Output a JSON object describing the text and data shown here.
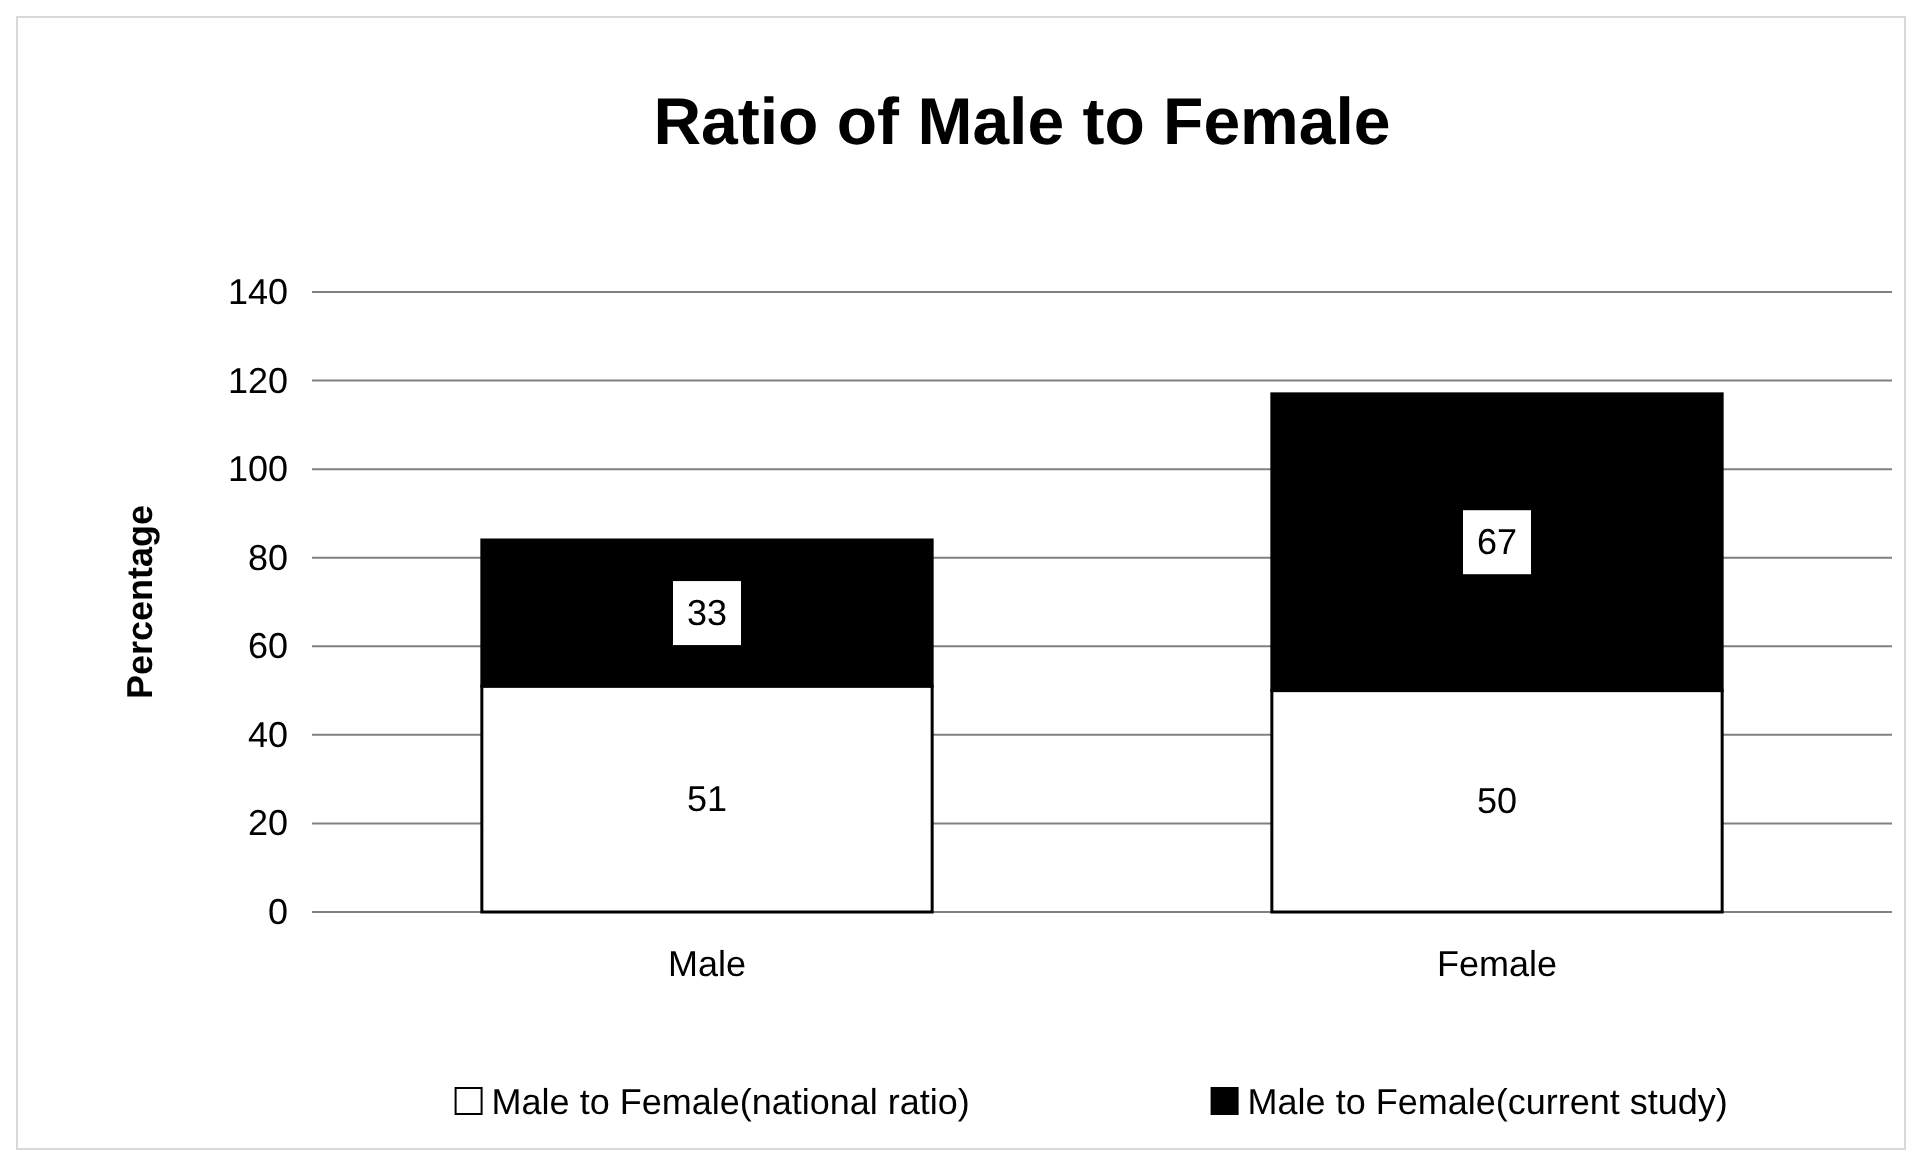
{
  "chart_data": {
    "type": "bar",
    "title": "Ratio of Male to Female",
    "ylabel": "Percentage",
    "categories": [
      "Male",
      "Female"
    ],
    "series": [
      {
        "name": "Male to Female(national ratio)",
        "color": "#ffffff",
        "values": [
          51,
          50
        ]
      },
      {
        "name": "Male to Female(current study)",
        "color": "#000000",
        "values": [
          33,
          67
        ]
      }
    ],
    "stacked": true,
    "ylim": [
      0,
      140
    ],
    "yticks": [
      0,
      20,
      40,
      60,
      80,
      100,
      120,
      140
    ],
    "grid": "y",
    "legend": "bottom",
    "data_labels": true
  }
}
